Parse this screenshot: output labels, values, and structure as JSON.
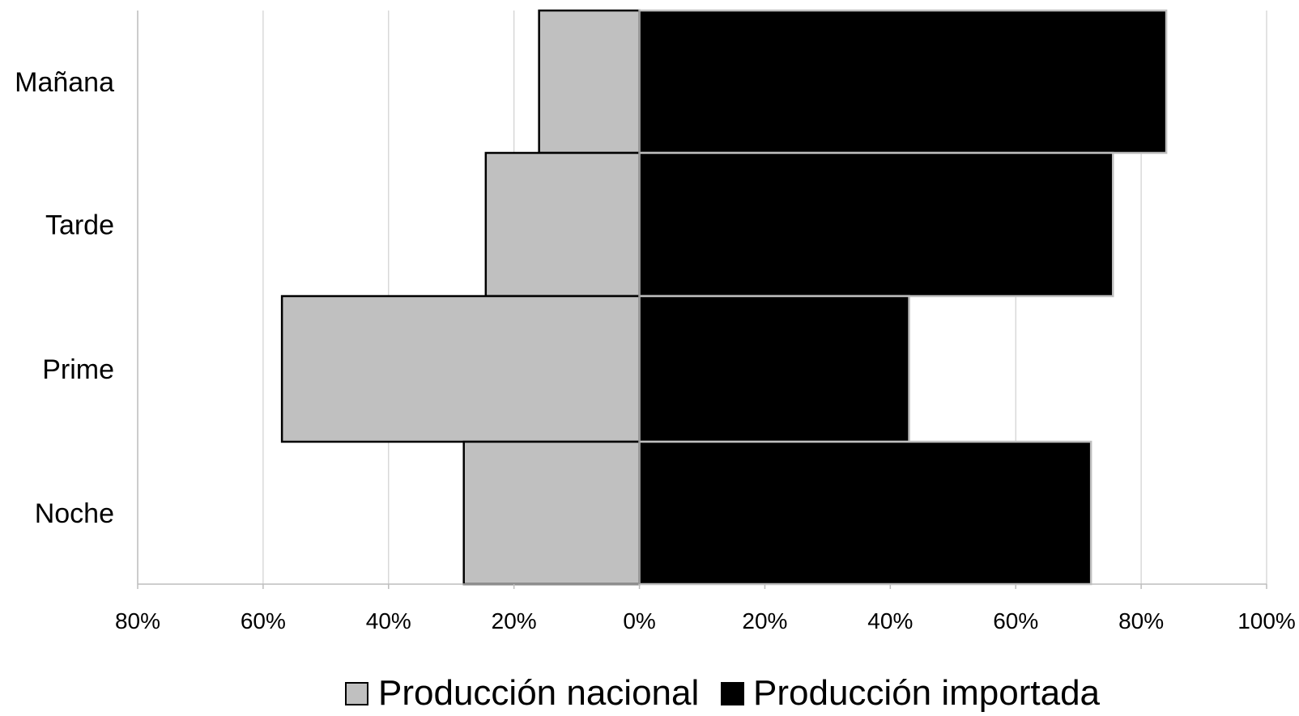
{
  "chart_data": {
    "type": "bar",
    "orientation": "horizontal",
    "layout": "butterfly",
    "categories": [
      "Mañana",
      "Tarde",
      "Prime",
      "Noche"
    ],
    "series": [
      {
        "name": "Producción nacional",
        "values": [
          16,
          24.5,
          57,
          28
        ],
        "color": "#c0c0c0",
        "side": "left"
      },
      {
        "name": "Producción importada",
        "values": [
          84,
          75.5,
          43,
          72
        ],
        "color": "#000000",
        "side": "right"
      }
    ],
    "xlim": [
      -80,
      100
    ],
    "x_ticks": [
      -80,
      -60,
      -40,
      -20,
      0,
      20,
      40,
      60,
      80,
      100
    ],
    "x_tick_labels": [
      "80%",
      "60%",
      "40%",
      "20%",
      "0%",
      "20%",
      "40%",
      "60%",
      "80%",
      "100%"
    ],
    "title": "",
    "xlabel": "",
    "ylabel": "",
    "grid": "vertical",
    "grid_color": "#d0d0d0",
    "legend_position": "bottom"
  }
}
